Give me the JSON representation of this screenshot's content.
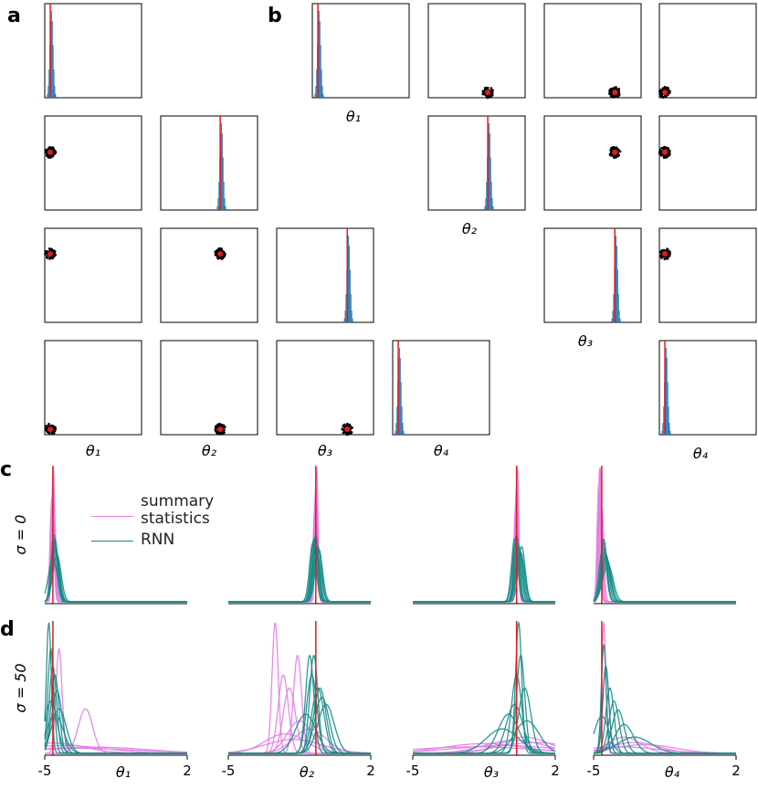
{
  "panel_labels": [
    "a",
    "b",
    "c",
    "d"
  ],
  "parameters": {
    "labels": [
      "θ₁",
      "θ₂",
      "θ₃",
      "θ₄"
    ],
    "true_values": [
      -4.6,
      -0.7,
      0.1,
      -4.6
    ],
    "lim": [
      -5,
      2
    ],
    "ticks": [
      -5,
      2
    ],
    "truth_color": "#e41a1c",
    "posterior_color": "#1f77b4"
  },
  "methods": [
    {
      "name": "summary statistics",
      "color": "#e67ce6"
    },
    {
      "name": "RNN",
      "color": "#158c86"
    }
  ],
  "rows": [
    {
      "label": "σ = 0",
      "panels": [
        {
          "series": [
            {
              "centers": [
                -4.6,
                -4.55,
                -4.65,
                -4.6,
                -4.58,
                -4.62
              ],
              "widths": [
                0.08,
                0.1,
                0.09,
                0.12,
                0.07,
                0.1
              ]
            },
            {
              "centers": [
                -4.5,
                -4.45,
                -4.55,
                -4.4,
                -4.5,
                -4.48,
                -4.52,
                -4.6
              ],
              "widths": [
                0.15,
                0.18,
                0.14,
                0.2,
                0.16,
                0.17,
                0.15,
                0.22
              ]
            }
          ]
        },
        {
          "series": [
            {
              "centers": [
                -0.7,
                -0.68,
                -0.72,
                -0.7,
                -0.66,
                -0.74
              ],
              "widths": [
                0.08,
                0.1,
                0.09,
                0.12,
                0.07,
                0.1
              ]
            },
            {
              "centers": [
                -0.8,
                -0.6,
                -0.7,
                -0.65,
                -0.75,
                -0.55,
                -0.85,
                -0.7
              ],
              "widths": [
                0.15,
                0.17,
                0.14,
                0.19,
                0.16,
                0.18,
                0.16,
                0.17
              ]
            }
          ]
        },
        {
          "series": [
            {
              "centers": [
                0.1,
                0.12,
                0.08,
                0.1,
                0.14,
                0.06
              ],
              "widths": [
                0.08,
                0.1,
                0.09,
                0.12,
                0.07,
                0.1
              ]
            },
            {
              "centers": [
                0.0,
                0.2,
                0.1,
                0.3,
                0.05,
                0.25,
                0.15,
                0.35
              ],
              "widths": [
                0.15,
                0.17,
                0.14,
                0.19,
                0.16,
                0.18,
                0.16,
                0.17
              ]
            }
          ]
        },
        {
          "series": [
            {
              "centers": [
                -4.7,
                -4.65,
                -4.75,
                -4.6,
                -4.68,
                -4.72
              ],
              "widths": [
                0.07,
                0.09,
                0.08,
                0.1,
                0.07,
                0.09
              ]
            },
            {
              "centers": [
                -4.5,
                -4.4,
                -4.45,
                -4.35,
                -4.5,
                -4.3,
                -4.55,
                -4.4
              ],
              "widths": [
                0.15,
                0.2,
                0.18,
                0.22,
                0.16,
                0.25,
                0.17,
                0.2
              ]
            }
          ]
        }
      ]
    },
    {
      "label": "σ = 50",
      "panels": [
        {
          "series": [
            {
              "centers": [
                -4.3,
                -3.0,
                -4.6,
                -2.5,
                -4.0,
                -3.5
              ],
              "widths": [
                0.15,
                0.35,
                1.5,
                2.5,
                2.0,
                3.0
              ]
            },
            {
              "centers": [
                -4.8,
                -4.7,
                -4.6,
                -4.5,
                -4.4,
                -4.7,
                -4.3,
                -4.5
              ],
              "widths": [
                0.12,
                0.15,
                0.18,
                0.2,
                0.25,
                0.3,
                0.35,
                0.4
              ]
            }
          ]
        },
        {
          "series": [
            {
              "centers": [
                -2.7,
                -2.3,
                -2.0,
                -1.6,
                -1.5,
                -2.2,
                -1.0,
                -1.8
              ],
              "widths": [
                0.15,
                0.25,
                0.3,
                0.2,
                0.6,
                1.0,
                0.8,
                1.4
              ]
            },
            {
              "centers": [
                -1.0,
                -0.9,
                -0.8,
                -0.6,
                -0.4,
                -0.2,
                -0.5,
                -1.2
              ],
              "widths": [
                0.2,
                0.25,
                0.2,
                0.3,
                0.35,
                0.4,
                0.3,
                0.5
              ]
            }
          ]
        },
        {
          "series": [
            {
              "centers": [
                0.0,
                -1.5,
                0.5,
                -0.5,
                1.0,
                -2.0
              ],
              "widths": [
                1.5,
                2.0,
                1.2,
                2.5,
                1.8,
                3.0
              ]
            },
            {
              "centers": [
                0.2,
                0.3,
                0.1,
                0.5,
                0.0,
                -0.3,
                0.6,
                -0.6
              ],
              "widths": [
                0.15,
                0.2,
                0.25,
                0.3,
                0.4,
                0.5,
                0.6,
                0.8
              ]
            }
          ]
        },
        {
          "series": [
            {
              "centers": [
                -4.5,
                -4.4,
                -3.5,
                -3.0,
                -2.5,
                -3.8
              ],
              "widths": [
                0.1,
                0.15,
                0.8,
                1.2,
                1.5,
                2.0
              ]
            },
            {
              "centers": [
                -4.5,
                -4.4,
                -4.2,
                -4.0,
                -3.8,
                -3.5,
                -4.6,
                -3.0
              ],
              "widths": [
                0.12,
                0.15,
                0.2,
                0.25,
                0.3,
                0.45,
                0.35,
                0.8
              ]
            }
          ]
        }
      ]
    }
  ]
}
